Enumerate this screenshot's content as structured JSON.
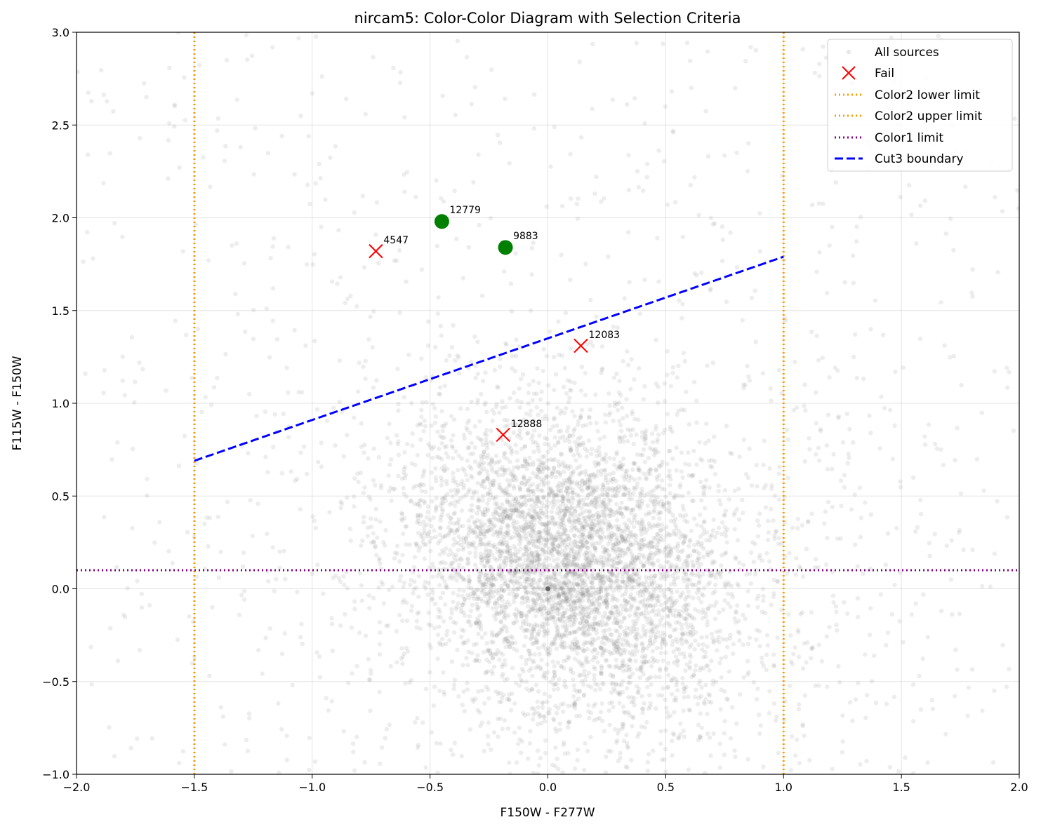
{
  "chart_data": {
    "type": "scatter",
    "title": "nircam5: Color-Color Diagram with Selection Criteria",
    "xlabel": "F150W - F277W",
    "ylabel": "F115W - F150W",
    "xlim": [
      -2.0,
      2.0
    ],
    "ylim": [
      -1.0,
      3.0
    ],
    "grid": true,
    "legend_position": "top-right",
    "x_ticks": [
      "−2.0",
      "−1.5",
      "−1.0",
      "−0.5",
      "0.0",
      "0.5",
      "1.0",
      "1.5",
      "2.0"
    ],
    "x_tick_values": [
      -2.0,
      -1.5,
      -1.0,
      -0.5,
      0.0,
      0.5,
      1.0,
      1.5,
      2.0
    ],
    "y_ticks": [
      "−1.0",
      "−0.5",
      "0.0",
      "0.5",
      "1.0",
      "1.5",
      "2.0",
      "2.5",
      "3.0"
    ],
    "y_tick_values": [
      -1.0,
      -0.5,
      0.0,
      0.5,
      1.0,
      1.5,
      2.0,
      2.5,
      3.0
    ],
    "background_sources": {
      "name": "All sources",
      "color": "#808080",
      "count": 6000,
      "distribution": "dense cluster centered near (0.1, 0.15), spread ~0.35 in x and ~0.4 in y, with sparse scatter across the full plot range",
      "outlier_point": [
        0.0,
        0.0
      ]
    },
    "fail_points": {
      "name": "Fail",
      "color": "#ff0000",
      "points": [
        {
          "id": "4547",
          "x": -0.73,
          "y": 1.82
        },
        {
          "id": "12083",
          "x": 0.14,
          "y": 1.31
        },
        {
          "id": "12888",
          "x": -0.19,
          "y": 0.83
        }
      ]
    },
    "pass_points": {
      "color": "#008000",
      "points": [
        {
          "id": "12779",
          "x": -0.45,
          "y": 1.98
        },
        {
          "id": "9883",
          "x": -0.18,
          "y": 1.84
        }
      ]
    },
    "lines": [
      {
        "name": "Color2 lower limit",
        "type": "vertical",
        "x": -1.5,
        "color": "#ff9900",
        "style": "dotted"
      },
      {
        "name": "Color2 upper limit",
        "type": "vertical",
        "x": 1.0,
        "color": "#ff9900",
        "style": "dotted"
      },
      {
        "name": "Color1 limit",
        "type": "horizontal",
        "y": 0.1,
        "color": "#800080",
        "style": "dotted"
      },
      {
        "name": "Cut3 boundary",
        "type": "segment",
        "x": [
          -1.5,
          1.0
        ],
        "y": [
          0.69,
          1.79
        ],
        "color": "#0000ff",
        "style": "dashed"
      }
    ],
    "legend": [
      "All sources",
      "Fail",
      "Color2 lower limit",
      "Color2 upper limit",
      "Color1 limit",
      "Cut3 boundary"
    ]
  }
}
